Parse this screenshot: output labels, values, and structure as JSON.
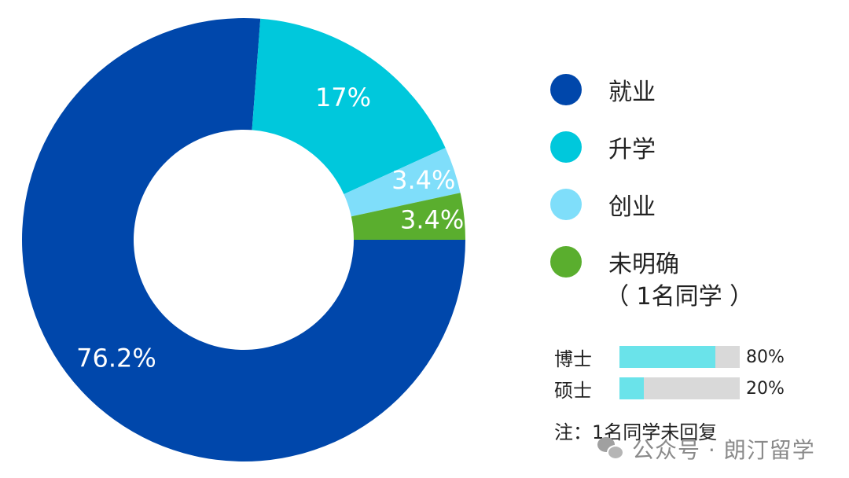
{
  "chart_data": {
    "type": "pie",
    "variant": "donut",
    "title": "",
    "slices": [
      {
        "name": "就业",
        "value": 76.2,
        "label": "76.2%",
        "color": "#0047AB"
      },
      {
        "name": "升学",
        "value": 17,
        "label": "17%",
        "color": "#00C8DC"
      },
      {
        "name": "创业",
        "value": 3.4,
        "label": "3.4%",
        "color": "#7FDEFA"
      },
      {
        "name": "未明确",
        "value": 3.4,
        "label": "3.4%",
        "color": "#5AAE2E"
      }
    ],
    "legend_placement": "right",
    "legend": [
      {
        "label": "就业",
        "color": "#0047AB"
      },
      {
        "label": "升学",
        "color": "#00C8DC"
      },
      {
        "label": "创业",
        "color": "#7FDEFA"
      },
      {
        "label": "未明确",
        "color": "#5AAE2E",
        "sub": "（ 1名同学 ）"
      }
    ],
    "breakdown": {
      "type": "bar",
      "orientation": "horizontal",
      "categories": [
        "博士",
        "硕士"
      ],
      "values": [
        80,
        20
      ],
      "labels": [
        "80%",
        "20%"
      ],
      "xlim": [
        0,
        100
      ],
      "fill_color": "#6AE3EA",
      "track_color": "#D9D9D9"
    },
    "note": "注：1名同学未回复"
  },
  "watermark": {
    "text": "公众号 · 朗汀留学",
    "icon": "wechat-icon"
  }
}
